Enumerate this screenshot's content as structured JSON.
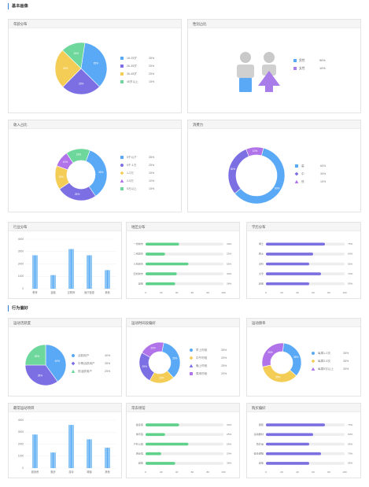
{
  "sections": {
    "basic": "基本画像",
    "behavior": "行为偏好"
  },
  "colors": {
    "blue": "#5aa9f6",
    "purple": "#7b6fe3",
    "yellow": "#f4cd56",
    "green": "#6ed89c",
    "violet": "#b173e9",
    "male": "#5aa9f6",
    "female": "#a97de9",
    "bar_green": "#5fd18b",
    "bar_purple": "#7c70e0",
    "column": "#8ec7f5"
  },
  "cards": {
    "c1": {
      "title": "年龄分布"
    },
    "c2": {
      "title": "性别占比"
    },
    "c3": {
      "title": "收入占比"
    },
    "c4": {
      "title": "消费力"
    },
    "c5": {
      "title": "行业分布"
    },
    "c6": {
      "title": "地区分布"
    },
    "c7": {
      "title": "学历分布"
    },
    "c8": {
      "title": "运动活跃度"
    },
    "c9": {
      "title": "运动时间段偏好"
    },
    "c10": {
      "title": "运动频率"
    },
    "c11": {
      "title": "最常运动项目"
    },
    "c12": {
      "title": "常去场馆"
    },
    "c13": {
      "title": "购买偏好"
    }
  },
  "chart_data": [
    {
      "id": "age",
      "type": "pie",
      "categories": [
        "18-25岁",
        "26-35岁",
        "36-45岁",
        "46岁以上"
      ],
      "values": [
        35,
        25,
        25,
        15
      ],
      "labels": [
        "35%",
        "25%",
        "25%",
        "15%"
      ],
      "slice_labels": [
        "35%",
        "25%",
        "25%",
        "15%"
      ]
    },
    {
      "id": "gender",
      "type": "pie",
      "categories": [
        "男性",
        "女性"
      ],
      "values": [
        90,
        10
      ],
      "labels": [
        "90%",
        "10%"
      ]
    },
    {
      "id": "income",
      "type": "pie",
      "categories": [
        "5千以下",
        "5千-1万",
        "1-2万",
        "2-5万",
        "5万以上"
      ],
      "values": [
        35,
        25,
        15,
        10,
        15
      ],
      "labels": [
        "35%",
        "25%",
        "15%",
        "10%",
        "15%"
      ],
      "slice_labels": [
        "35%",
        "25%",
        "15%",
        "10%",
        "15%"
      ]
    },
    {
      "id": "spending",
      "type": "pie",
      "categories": [
        "高",
        "中",
        "低"
      ],
      "values": [
        60,
        30,
        10
      ],
      "labels": [
        "60%",
        "30%",
        "10%"
      ],
      "slice_labels": [
        "60%",
        "30%",
        "10%"
      ]
    },
    {
      "id": "industry",
      "type": "bar",
      "categories": [
        "教育",
        "金融",
        "互联网",
        "医疗健康",
        "其他"
      ],
      "values": [
        2700,
        1100,
        3200,
        2700,
        1500
      ],
      "y_ticks": [
        "0",
        "1000",
        "2000",
        "3000",
        "4000"
      ],
      "ylim": [
        0,
        4000
      ]
    },
    {
      "id": "region",
      "type": "bar",
      "orientation": "horizontal",
      "categories": [
        "一线城市",
        "二线城市",
        "三线城市",
        "四线城市",
        "其他"
      ],
      "values": [
        43,
        25,
        55,
        40,
        38
      ],
      "labels": [
        "43%",
        "25%",
        "55%",
        "40%",
        "38%"
      ],
      "x_ticks": [
        "0",
        "20",
        "40",
        "60",
        "80",
        "100"
      ],
      "xlim": [
        0,
        100
      ]
    },
    {
      "id": "education",
      "type": "bar",
      "orientation": "horizontal",
      "categories": [
        "博士",
        "硕士",
        "本科",
        "大专",
        "其他"
      ],
      "values": [
        75,
        60,
        55,
        70,
        55
      ],
      "labels": [
        "75%",
        "60%",
        "55%",
        "70%",
        "55%"
      ],
      "x_ticks": [
        "0",
        "20",
        "40",
        "60",
        "80",
        "100"
      ],
      "xlim": [
        0,
        100
      ]
    },
    {
      "id": "activity",
      "type": "pie",
      "categories": [
        "活跃用户",
        "中等活跃用户",
        "低活跃用户"
      ],
      "values": [
        40,
        35,
        25
      ],
      "labels": [
        "40%",
        "35%",
        "25%"
      ],
      "slice_labels": [
        "40%",
        "35%",
        "25%"
      ]
    },
    {
      "id": "timeslot",
      "type": "pie",
      "categories": [
        "早上时段",
        "中午时段",
        "晚上时段",
        "周末时段"
      ],
      "values": [
        35,
        20,
        25,
        20
      ],
      "labels": [
        "35%",
        "20%",
        "25%",
        "20%"
      ],
      "slice_labels": [
        "35%",
        "20%",
        "25%",
        "20%"
      ]
    },
    {
      "id": "frequency",
      "type": "pie",
      "categories": [
        "每周1-2次",
        "每周3-5次",
        "每周5次以上"
      ],
      "values": [
        35,
        35,
        30
      ],
      "labels": [
        "35%",
        "35%",
        "30%"
      ],
      "slice_labels": [
        "35%",
        "35%",
        "30%"
      ]
    },
    {
      "id": "sports",
      "type": "bar",
      "categories": [
        "健身房",
        "跑步",
        "游泳",
        "瑜伽",
        "其他"
      ],
      "values": [
        2800,
        1300,
        3600,
        2400,
        1700
      ],
      "y_ticks": [
        "0",
        "1000",
        "2000",
        "3000",
        "4000"
      ],
      "ylim": [
        0,
        4000
      ]
    },
    {
      "id": "venue",
      "type": "bar",
      "orientation": "horizontal",
      "categories": [
        "健身房",
        "体育馆",
        "户外公园",
        "游泳馆",
        "其他"
      ],
      "values": [
        43,
        25,
        55,
        20,
        38
      ],
      "labels": [
        "43%",
        "25%",
        "55%",
        "20%",
        "38%"
      ],
      "x_ticks": [
        "0",
        "20",
        "40",
        "60",
        "80",
        "100"
      ],
      "xlim": [
        0,
        100
      ]
    },
    {
      "id": "purchase",
      "type": "bar",
      "orientation": "horizontal",
      "categories": [
        "服装",
        "运动器材",
        "营养品",
        "健身课程",
        "其他"
      ],
      "values": [
        75,
        60,
        55,
        70,
        55
      ],
      "labels": [
        "75%",
        "60%",
        "55%",
        "70%",
        "55%"
      ],
      "x_ticks": [
        "0",
        "20",
        "40",
        "60",
        "80",
        "100"
      ],
      "xlim": [
        0,
        100
      ]
    }
  ]
}
